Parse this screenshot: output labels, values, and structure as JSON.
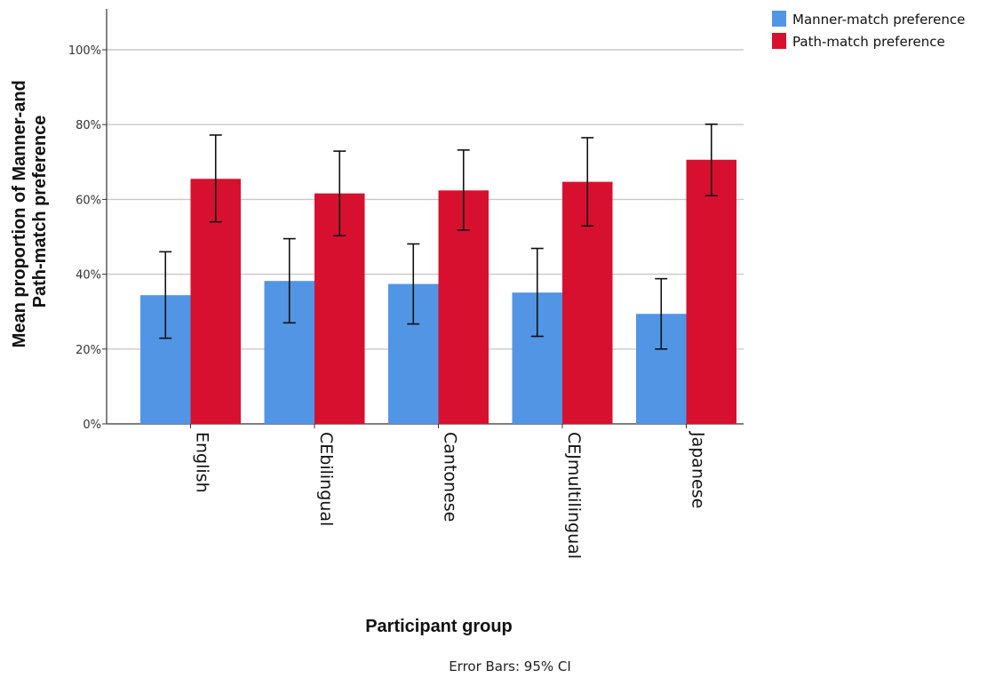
{
  "chart_data": {
    "type": "bar",
    "title": "",
    "xlabel": "Participant group",
    "ylabel_lines": [
      "Mean proportion of Manner-and",
      "Path-match preference"
    ],
    "categories": [
      "English",
      "CEbilingual",
      "Cantonese",
      "CEJmultilingual",
      "Japanese"
    ],
    "series": [
      {
        "name": "Manner-match preference",
        "color": "#5295e5",
        "values": [
          34.4,
          38.2,
          37.4,
          35.1,
          29.4
        ],
        "ci_low": [
          22.9,
          27.0,
          26.7,
          23.4,
          20.0
        ],
        "ci_high": [
          46.0,
          49.5,
          48.1,
          46.9,
          38.8
        ]
      },
      {
        "name": "Path-match preference",
        "color": "#d8102f",
        "values": [
          65.5,
          61.6,
          62.4,
          64.7,
          70.6
        ],
        "ci_low": [
          54.0,
          50.3,
          51.8,
          52.9,
          61.0
        ],
        "ci_high": [
          77.2,
          72.9,
          73.2,
          76.5,
          80.1
        ]
      }
    ],
    "y_ticks": [
      "0%",
      "20%",
      "40%",
      "60%",
      "80%",
      "100%"
    ],
    "ylim": [
      0,
      100
    ],
    "y_unit": "%",
    "grid": true,
    "legend_position": "top-right",
    "footnote": "Error Bars: 95% CI"
  }
}
